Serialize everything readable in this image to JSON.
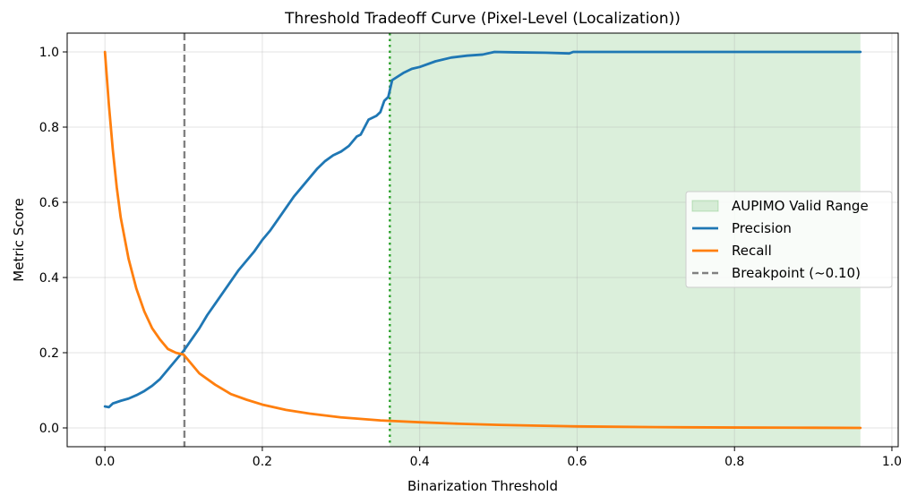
{
  "chart_data": {
    "type": "line",
    "title": "Threshold Tradeoff Curve (Pixel-Level (Localization))",
    "xlabel": "Binarization Threshold",
    "ylabel": "Metric Score",
    "xlim": [
      -0.048,
      1.008
    ],
    "ylim": [
      -0.05,
      1.05
    ],
    "xticks": [
      0.0,
      0.2,
      0.4,
      0.6,
      0.8,
      1.0
    ],
    "xtick_labels": [
      "0.0",
      "0.2",
      "0.4",
      "0.6",
      "0.8",
      "1.0"
    ],
    "yticks": [
      0.0,
      0.2,
      0.4,
      0.6,
      0.8,
      1.0
    ],
    "ytick_labels": [
      "0.0",
      "0.2",
      "0.4",
      "0.6",
      "0.8",
      "1.0"
    ],
    "grid": true,
    "legend_position": "center-right",
    "shaded_region": {
      "name": "AUPIMO Valid Range",
      "x_range": [
        0.362,
        0.96
      ],
      "color": "#2ca02c"
    },
    "vertical_lines": [
      {
        "name": "Breakpoint (~0.10)",
        "x": 0.101,
        "style": "dashed",
        "color": "#808080"
      },
      {
        "name": "",
        "x": 0.362,
        "style": "dotted",
        "color": "#2ca02c"
      }
    ],
    "series": [
      {
        "name": "Precision",
        "color": "#1f77b4",
        "x": [
          0.0,
          0.005,
          0.01,
          0.02,
          0.03,
          0.04,
          0.05,
          0.06,
          0.07,
          0.08,
          0.09,
          0.1,
          0.11,
          0.12,
          0.13,
          0.14,
          0.15,
          0.16,
          0.17,
          0.18,
          0.19,
          0.2,
          0.21,
          0.22,
          0.23,
          0.24,
          0.25,
          0.26,
          0.27,
          0.28,
          0.29,
          0.3,
          0.31,
          0.32,
          0.325,
          0.33,
          0.335,
          0.34,
          0.345,
          0.35,
          0.355,
          0.36,
          0.365,
          0.38,
          0.39,
          0.4,
          0.42,
          0.44,
          0.46,
          0.48,
          0.495,
          0.52,
          0.56,
          0.59,
          0.595,
          0.62,
          0.7,
          0.8,
          0.9,
          0.96
        ],
        "y": [
          0.057,
          0.055,
          0.065,
          0.072,
          0.078,
          0.087,
          0.098,
          0.112,
          0.13,
          0.155,
          0.18,
          0.205,
          0.235,
          0.265,
          0.3,
          0.33,
          0.36,
          0.39,
          0.42,
          0.445,
          0.47,
          0.5,
          0.525,
          0.555,
          0.585,
          0.615,
          0.64,
          0.665,
          0.69,
          0.71,
          0.725,
          0.735,
          0.75,
          0.775,
          0.78,
          0.8,
          0.82,
          0.825,
          0.83,
          0.84,
          0.87,
          0.88,
          0.925,
          0.945,
          0.955,
          0.96,
          0.975,
          0.985,
          0.99,
          0.993,
          1.0,
          0.999,
          0.998,
          0.996,
          1.0,
          1.0,
          1.0,
          1.0,
          1.0,
          1.0
        ]
      },
      {
        "name": "Recall",
        "color": "#ff7f0e",
        "x": [
          0.0,
          0.005,
          0.01,
          0.015,
          0.02,
          0.03,
          0.04,
          0.05,
          0.06,
          0.07,
          0.08,
          0.09,
          0.1,
          0.12,
          0.14,
          0.16,
          0.18,
          0.2,
          0.23,
          0.26,
          0.3,
          0.35,
          0.4,
          0.45,
          0.5,
          0.55,
          0.6,
          0.7,
          0.8,
          0.9,
          0.96
        ],
        "y": [
          1.0,
          0.86,
          0.74,
          0.64,
          0.56,
          0.45,
          0.37,
          0.31,
          0.265,
          0.235,
          0.21,
          0.2,
          0.195,
          0.145,
          0.115,
          0.09,
          0.075,
          0.062,
          0.048,
          0.038,
          0.028,
          0.02,
          0.015,
          0.011,
          0.008,
          0.006,
          0.004,
          0.002,
          0.001,
          0.0005,
          0.0
        ]
      }
    ]
  }
}
